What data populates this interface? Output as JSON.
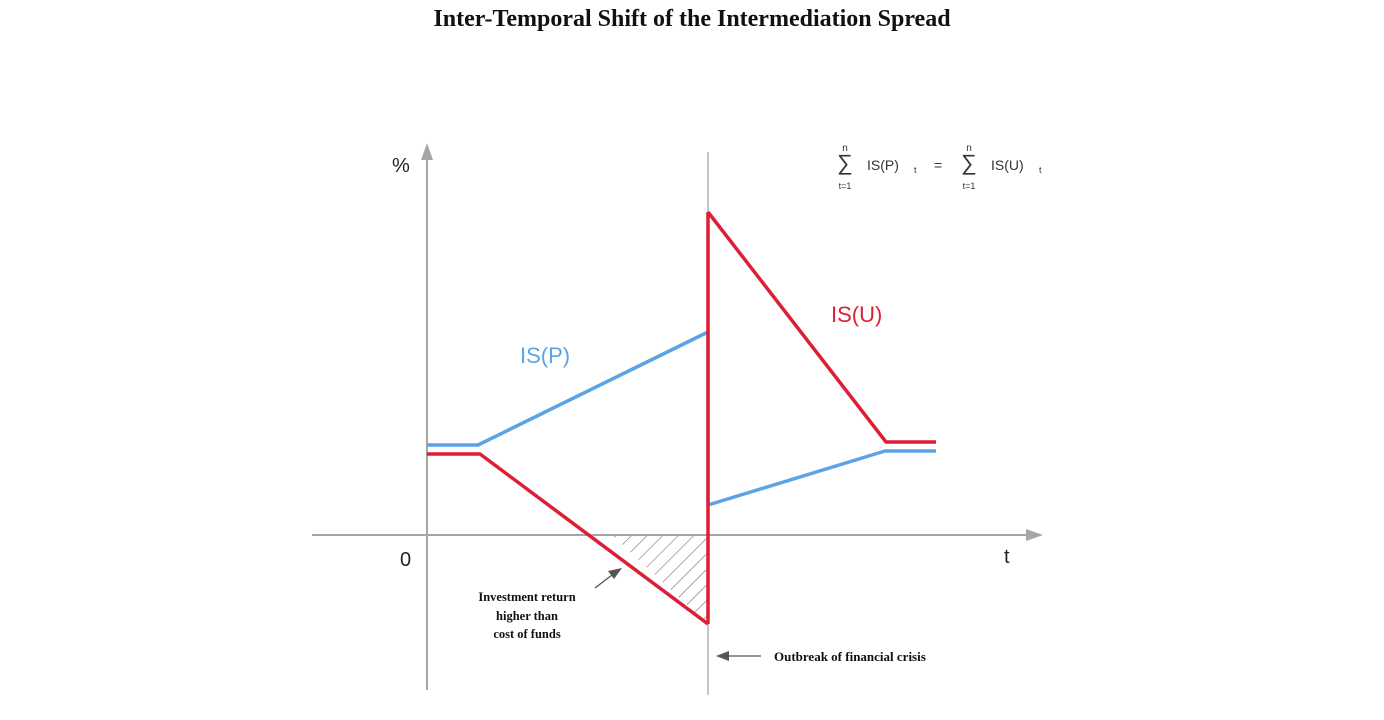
{
  "title": "Inter-Temporal Shift of the Intermediation Spread",
  "axes": {
    "y_label": "%",
    "x_label": "t",
    "origin_label": "0"
  },
  "series_labels": {
    "is_p": "IS(P)",
    "is_u": "IS(U)"
  },
  "colors": {
    "is_p": "#5aa3e6",
    "is_u": "#dd1f35",
    "axis": "#a6a6a6"
  },
  "equation": {
    "upper": "n",
    "lower": "t=1",
    "left_term": "IS(P)",
    "right_term": "IS(U)",
    "subscript": "t",
    "equals": "="
  },
  "annotations": {
    "investment_line1": "Investment return",
    "investment_line2": "higher than",
    "investment_line3": "cost of funds",
    "crisis": "Outbreak of financial crisis"
  }
}
